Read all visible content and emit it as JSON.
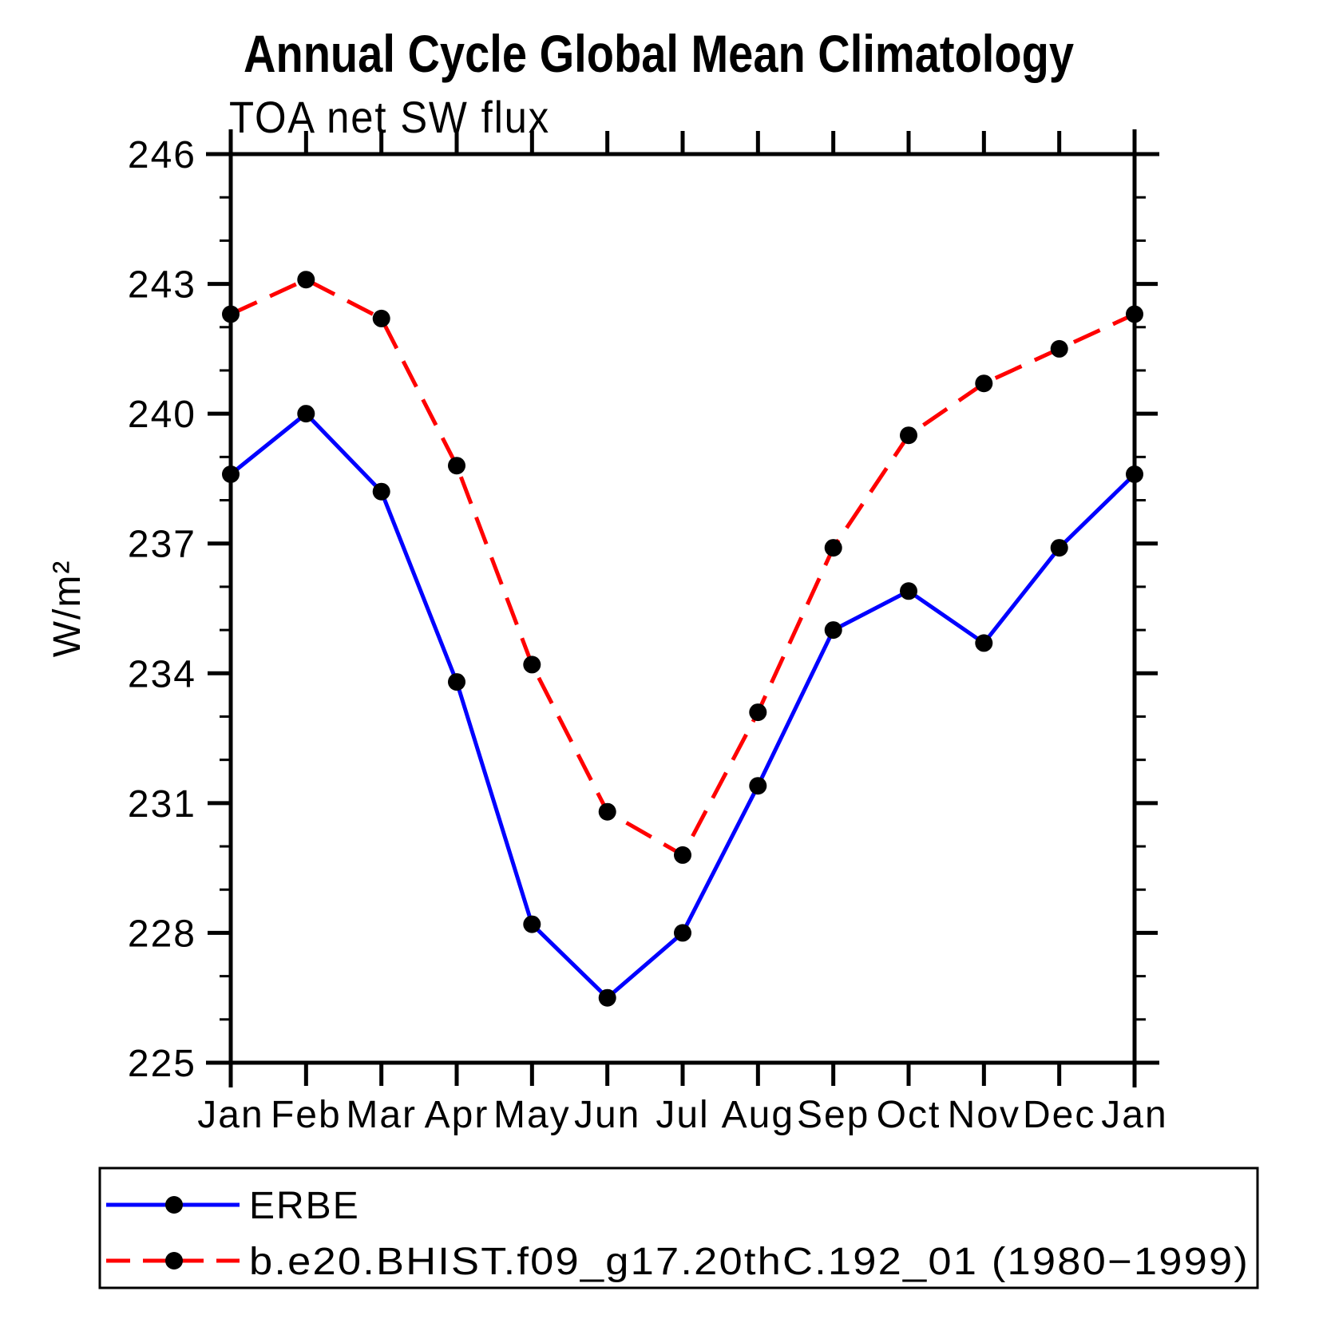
{
  "title": "Annual Cycle Global Mean Climatology",
  "subtitle": "TOA net SW flux",
  "y_axis": {
    "label": "W/m²",
    "major_ticks": [
      225,
      228,
      231,
      234,
      237,
      240,
      243,
      246
    ],
    "minor_step": 1
  },
  "x_axis": {
    "labels": [
      "Jan",
      "Feb",
      "Mar",
      "Apr",
      "May",
      "Jun",
      "Jul",
      "Aug",
      "Sep",
      "Oct",
      "Nov",
      "Dec",
      "Jan"
    ]
  },
  "legend": [
    {
      "label": "ERBE",
      "color": "#0000ff",
      "style": "solid",
      "marker": "filled-circle"
    },
    {
      "label": "b.e20.BHIST.f09_g17.20thC.192_01 (1980−1999)",
      "color": "#ff0000",
      "style": "dashed",
      "marker": "filled-circle"
    }
  ],
  "colors": {
    "erbe_line": "#0000ff",
    "model_line": "#ff0000",
    "marker": "#000000",
    "axis": "#000000"
  },
  "chart_data": {
    "type": "line",
    "title": "Annual Cycle Global Mean Climatology",
    "subtitle": "TOA net SW flux",
    "xlabel": "",
    "ylabel": "W/m²",
    "ylim": [
      225,
      246
    ],
    "ytick_interval": 3,
    "grid": false,
    "legend_position": "bottom",
    "categories": [
      "Jan",
      "Feb",
      "Mar",
      "Apr",
      "May",
      "Jun",
      "Jul",
      "Aug",
      "Sep",
      "Oct",
      "Nov",
      "Dec",
      "Jan"
    ],
    "series": [
      {
        "name": "ERBE",
        "color": "#0000ff",
        "line_style": "solid",
        "marker": "filled-circle",
        "marker_color": "#000000",
        "values": [
          238.6,
          240.0,
          238.2,
          233.8,
          228.2,
          226.5,
          228.0,
          231.4,
          235.0,
          235.9,
          234.7,
          236.9,
          238.6
        ]
      },
      {
        "name": "b.e20.BHIST.f09_g17.20thC.192_01 (1980−1999)",
        "color": "#ff0000",
        "line_style": "dashed",
        "marker": "filled-circle",
        "marker_color": "#000000",
        "values": [
          242.3,
          243.1,
          242.2,
          238.8,
          234.2,
          230.8,
          229.8,
          233.1,
          236.9,
          239.5,
          240.7,
          241.5,
          242.3
        ]
      }
    ]
  }
}
